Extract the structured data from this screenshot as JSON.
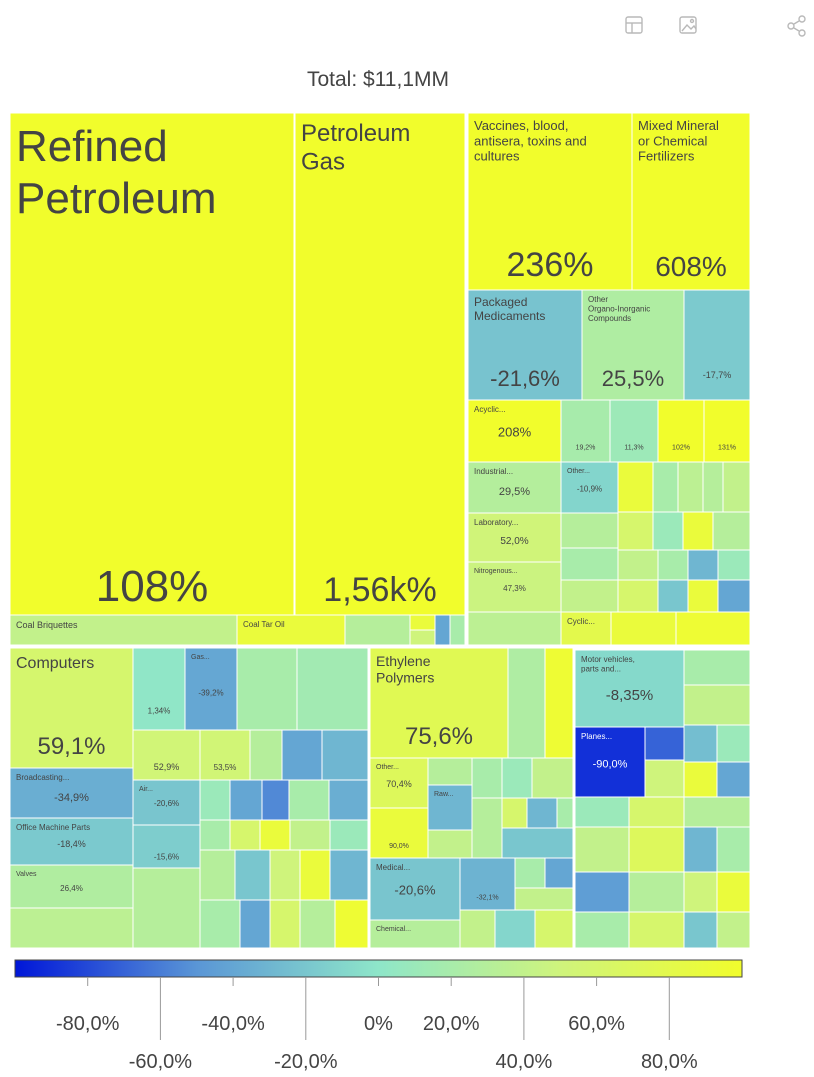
{
  "chart_data": {
    "type": "treemap",
    "title": "Total: $11,1MM",
    "clim": [
      -100,
      100
    ],
    "colorscale": [
      [
        -100,
        "#0016d8"
      ],
      [
        -50,
        "#5a96d6"
      ],
      [
        0,
        "#8ee6c9"
      ],
      [
        50,
        "#cff47c"
      ],
      [
        100,
        "#f1fd2c"
      ]
    ],
    "cticks": [
      {
        "value": -80,
        "label": "-80,0%"
      },
      {
        "value": -60,
        "label": "-60,0%"
      },
      {
        "value": -40,
        "label": "-40,0%"
      },
      {
        "value": -20,
        "label": "-20,0%"
      },
      {
        "value": 0,
        "label": "0%"
      },
      {
        "value": 20,
        "label": "20,0%"
      },
      {
        "value": 40,
        "label": "40,0%"
      },
      {
        "value": 60,
        "label": "60,0%"
      },
      {
        "value": 80,
        "label": "80,0%"
      }
    ],
    "tiles": [
      {
        "label": "Refined Petroleum",
        "value": 108,
        "value_label": "108%"
      },
      {
        "label": "Petroleum Gas",
        "value": 1560,
        "value_label": "1,56k%"
      },
      {
        "label": "Coal Briquettes",
        "value": 40
      },
      {
        "label": "Coal Tar Oil",
        "value": 90
      },
      {
        "value": 30
      },
      {
        "value": 90
      },
      {
        "value": 50
      },
      {
        "value": -40
      },
      {
        "value": 20
      },
      {
        "label": "Vaccines, blood, antisera, toxins and cultures",
        "value": 236,
        "value_label": "236%"
      },
      {
        "label": "Mixed Mineral or Chemical Fertilizers",
        "value": 608,
        "value_label": "608%"
      },
      {
        "label": "Packaged Medicaments",
        "value": -21.6,
        "value_label": "-21,6%"
      },
      {
        "label": "Other Organo-Inorganic Compounds",
        "value": 25.5,
        "value_label": "25,5%"
      },
      {
        "value": -17.7,
        "value_label": "-17,7%"
      },
      {
        "label": "Acyclic...",
        "value": 208,
        "value_label": "208%"
      },
      {
        "value": 19.2,
        "value_label": "19,2%"
      },
      {
        "value": 11.3,
        "value_label": "11,3%"
      },
      {
        "value": 102,
        "value_label": "102%"
      },
      {
        "value": 131,
        "value_label": "131%"
      },
      {
        "label": "Industrial...",
        "value": 29.5,
        "value_label": "29,5%"
      },
      {
        "label": "Other...",
        "value": -10.9,
        "value_label": "-10,9%"
      },
      {
        "label": "Laboratory...",
        "value": 52,
        "value_label": "52,0%"
      },
      {
        "label": "Nitrogenous...",
        "value": 47.3,
        "value_label": "47,3%"
      },
      {
        "value": 35
      },
      {
        "label": "Cyclic...",
        "value": 80
      },
      {
        "value": 90
      },
      {
        "value": 20
      },
      {
        "value": 35
      },
      {
        "value": 30
      },
      {
        "value": 40
      },
      {
        "value": 30
      },
      {
        "value": 20
      },
      {
        "value": 40
      },
      {
        "value": 60
      },
      {
        "value": 10
      },
      {
        "value": 90
      },
      {
        "value": 30
      },
      {
        "value": 40
      },
      {
        "value": 20
      },
      {
        "value": -30
      },
      {
        "value": 10
      },
      {
        "value": 60
      },
      {
        "value": -20
      },
      {
        "value": 90
      },
      {
        "value": -40
      },
      {
        "value": 90
      },
      {
        "value": 95
      },
      {
        "label": "Computers",
        "value": 59.1,
        "value_label": "59,1%"
      },
      {
        "value": 1.34,
        "value_label": "1,34%"
      },
      {
        "label": "Gas...",
        "value": -39.2,
        "value_label": "-39,2%"
      },
      {
        "value": 20
      },
      {
        "value": 15
      },
      {
        "value": 52.9,
        "value_label": "52,9%"
      },
      {
        "value": 53.5,
        "value_label": "53,5%"
      },
      {
        "value": 30
      },
      {
        "value": -40
      },
      {
        "value": -30
      },
      {
        "label": "Broadcasting...",
        "value": -34.9,
        "value_label": "-34,9%"
      },
      {
        "label": "Air...",
        "value": -20.6,
        "value_label": "-20,6%"
      },
      {
        "label": "Office Machine Parts",
        "value": -18.4,
        "value_label": "-18,4%"
      },
      {
        "value": -15.6,
        "value_label": "-15,6%"
      },
      {
        "label": "Valves",
        "value": 26.4,
        "value_label": "26,4%"
      },
      {
        "value": 35
      },
      {
        "value": 30
      },
      {
        "value": 10
      },
      {
        "value": -40
      },
      {
        "value": -55
      },
      {
        "value": 20
      },
      {
        "value": -35
      },
      {
        "value": 20
      },
      {
        "value": 60
      },
      {
        "value": 90
      },
      {
        "value": 40
      },
      {
        "value": 10
      },
      {
        "value": 30
      },
      {
        "value": -20
      },
      {
        "value": 50
      },
      {
        "value": 90
      },
      {
        "value": -30
      },
      {
        "value": 20
      },
      {
        "value": -40
      },
      {
        "value": 60
      },
      {
        "value": 30
      },
      {
        "value": 95
      },
      {
        "label": "Ethylene Polymers",
        "value": 75.6,
        "value_label": "75,6%"
      },
      {
        "value": 25
      },
      {
        "value": 95
      },
      {
        "label": "Other...",
        "value": 70.4,
        "value_label": "70,4%"
      },
      {
        "value": 30
      },
      {
        "label": "Raw...",
        "value": -30
      },
      {
        "value": 20
      },
      {
        "value": 10
      },
      {
        "value": 40
      },
      {
        "value": 90,
        "value_label": "90,0%"
      },
      {
        "value": 40
      },
      {
        "value": 30
      },
      {
        "value": 60
      },
      {
        "value": -30
      },
      {
        "value": 20
      },
      {
        "value": -20
      },
      {
        "label": "Medical...",
        "value": -20.6,
        "value_label": "-20,6%"
      },
      {
        "value": -32.1,
        "value_label": "-32,1%"
      },
      {
        "value": 20
      },
      {
        "value": -40
      },
      {
        "value": 40
      },
      {
        "label": "Chemical...",
        "value": 30
      },
      {
        "value": 40
      },
      {
        "value": -10
      },
      {
        "value": 60
      },
      {
        "label": "Motor vehicles, parts and...",
        "value": -8.35,
        "value_label": "-8,35%"
      },
      {
        "label": "Planes...",
        "value": -90,
        "value_label": "-90,0%"
      },
      {
        "value": -70
      },
      {
        "value": 50
      },
      {
        "value": 20
      },
      {
        "value": 40
      },
      {
        "value": -25
      },
      {
        "value": 10
      },
      {
        "value": 90
      },
      {
        "value": -40
      },
      {
        "value": 10
      },
      {
        "value": 60
      },
      {
        "value": 30
      },
      {
        "value": 40
      },
      {
        "value": 70
      },
      {
        "value": -30
      },
      {
        "value": 20
      },
      {
        "value": -45
      },
      {
        "value": 30
      },
      {
        "value": 50
      },
      {
        "value": 90
      },
      {
        "value": 20
      },
      {
        "value": 60
      },
      {
        "value": -20
      },
      {
        "value": 40
      }
    ]
  }
}
